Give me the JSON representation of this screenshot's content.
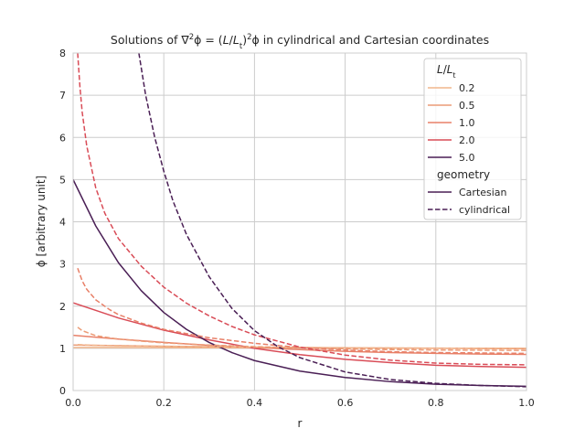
{
  "chart_data": {
    "type": "line",
    "title_parts": {
      "a": "Solutions of ",
      "b": "∇",
      "c": "2",
      "d": "ϕ = (",
      "e": "L",
      "f": "/",
      "g": "L",
      "h": "t",
      "i": ")",
      "j": "2",
      "k": "ϕ in cylindrical and Cartesian coordinates"
    },
    "xlabel": "r",
    "ylabel": "ϕ [arbitrary unit]",
    "xlim": [
      0.0,
      1.0
    ],
    "ylim": [
      0,
      8
    ],
    "x_ticks": [
      "0.0",
      "0.2",
      "0.4",
      "0.6",
      "0.8",
      "1.0"
    ],
    "y_ticks": [
      "0",
      "1",
      "2",
      "3",
      "4",
      "5",
      "6",
      "7",
      "8"
    ],
    "grid": true,
    "legend": {
      "placement": "top-right",
      "hue_title": {
        "var": "L",
        "sep": "/",
        "var2": "L",
        "sub": "t"
      },
      "hue_entries": [
        {
          "label": "0.2",
          "color": "#f1b58b"
        },
        {
          "label": "0.5",
          "color": "#ec9c77"
        },
        {
          "label": "1.0",
          "color": "#e88068"
        },
        {
          "label": "2.0",
          "color": "#d94c57"
        },
        {
          "label": "5.0",
          "color": "#4a1f55"
        }
      ],
      "style_title": "geometry",
      "style_entries": [
        {
          "label": "Cartesian",
          "dash": "solid"
        },
        {
          "label": "cylindrical",
          "dash": "dashed"
        }
      ]
    },
    "series": [
      {
        "ratio": 0.2,
        "geometry": "Cartesian",
        "color": "#f1b58b",
        "dash": "solid",
        "x": [
          0,
          0.1,
          0.2,
          0.3,
          0.4,
          0.5,
          0.6,
          0.7,
          0.8,
          0.9,
          1.0
        ],
        "y": [
          1.02,
          1.018,
          1.016,
          1.014,
          1.012,
          1.01,
          1.008,
          1.006,
          1.004,
          1.002,
          1.0
        ]
      },
      {
        "ratio": 0.5,
        "geometry": "Cartesian",
        "color": "#ec9c77",
        "dash": "solid",
        "x": [
          0,
          0.1,
          0.2,
          0.3,
          0.4,
          0.5,
          0.6,
          0.7,
          0.8,
          0.9,
          1.0
        ],
        "y": [
          1.08,
          1.065,
          1.05,
          1.038,
          1.028,
          1.018,
          1.01,
          1.005,
          1.0,
          0.995,
          0.99
        ]
      },
      {
        "ratio": 1.0,
        "geometry": "Cartesian",
        "color": "#e88068",
        "dash": "solid",
        "x": [
          0,
          0.1,
          0.2,
          0.3,
          0.4,
          0.5,
          0.6,
          0.7,
          0.8,
          0.9,
          1.0
        ],
        "y": [
          1.31,
          1.22,
          1.14,
          1.07,
          1.02,
          0.97,
          0.93,
          0.9,
          0.88,
          0.865,
          0.855
        ]
      },
      {
        "ratio": 2.0,
        "geometry": "Cartesian",
        "color": "#d94c57",
        "dash": "solid",
        "x": [
          0,
          0.1,
          0.2,
          0.3,
          0.4,
          0.5,
          0.6,
          0.7,
          0.8,
          0.9,
          1.0
        ],
        "y": [
          2.08,
          1.72,
          1.43,
          1.2,
          1.0,
          0.85,
          0.74,
          0.66,
          0.6,
          0.57,
          0.55
        ]
      },
      {
        "ratio": 5.0,
        "geometry": "Cartesian",
        "color": "#4a1f55",
        "dash": "solid",
        "x": [
          0,
          0.05,
          0.1,
          0.15,
          0.2,
          0.25,
          0.3,
          0.35,
          0.4,
          0.5,
          0.6,
          0.7,
          0.8,
          0.9,
          1.0
        ],
        "y": [
          5.0,
          3.9,
          3.03,
          2.37,
          1.85,
          1.45,
          1.14,
          0.9,
          0.71,
          0.46,
          0.31,
          0.21,
          0.15,
          0.12,
          0.1
        ]
      },
      {
        "ratio": 0.2,
        "geometry": "cylindrical",
        "color": "#f1b58b",
        "dash": "dashed",
        "x": [
          0.01,
          0.05,
          0.1,
          0.2,
          0.3,
          0.4,
          0.5,
          0.6,
          0.7,
          0.8,
          0.9,
          1.0
        ],
        "y": [
          1.09,
          1.07,
          1.06,
          1.05,
          1.04,
          1.03,
          1.02,
          1.015,
          1.01,
          1.005,
          1.0,
          1.0
        ]
      },
      {
        "ratio": 0.5,
        "geometry": "cylindrical",
        "color": "#ec9c77",
        "dash": "dashed",
        "x": [
          0.01,
          0.02,
          0.05,
          0.1,
          0.15,
          0.2,
          0.3,
          0.4,
          0.5,
          0.6,
          0.7,
          0.8,
          0.9,
          1.0
        ],
        "y": [
          1.5,
          1.42,
          1.3,
          1.22,
          1.17,
          1.13,
          1.08,
          1.04,
          1.01,
          0.99,
          0.97,
          0.96,
          0.955,
          0.95
        ]
      },
      {
        "ratio": 1.0,
        "geometry": "cylindrical",
        "color": "#e88068",
        "dash": "dashed",
        "x": [
          0.01,
          0.02,
          0.03,
          0.05,
          0.08,
          0.1,
          0.15,
          0.2,
          0.3,
          0.4,
          0.5,
          0.6,
          0.7,
          0.8,
          0.9,
          1.0
        ],
        "y": [
          2.9,
          2.6,
          2.4,
          2.15,
          1.92,
          1.8,
          1.6,
          1.45,
          1.25,
          1.12,
          1.02,
          0.96,
          0.92,
          0.9,
          0.89,
          0.88
        ]
      },
      {
        "ratio": 2.0,
        "geometry": "cylindrical",
        "color": "#d94c57",
        "dash": "dashed",
        "x": [
          0.01,
          0.015,
          0.02,
          0.03,
          0.05,
          0.07,
          0.1,
          0.15,
          0.2,
          0.25,
          0.3,
          0.35,
          0.4,
          0.5,
          0.6,
          0.7,
          0.8,
          0.9,
          1.0
        ],
        "y": [
          8.0,
          7.2,
          6.6,
          5.8,
          4.8,
          4.2,
          3.6,
          2.95,
          2.45,
          2.07,
          1.77,
          1.52,
          1.32,
          1.03,
          0.84,
          0.72,
          0.65,
          0.62,
          0.61
        ]
      },
      {
        "ratio": 5.0,
        "geometry": "cylindrical",
        "color": "#4a1f55",
        "dash": "dashed",
        "x": [
          0.145,
          0.16,
          0.18,
          0.2,
          0.22,
          0.25,
          0.3,
          0.35,
          0.4,
          0.45,
          0.5,
          0.6,
          0.7,
          0.8,
          0.9,
          1.0
        ],
        "y": [
          8.0,
          7.0,
          6.0,
          5.2,
          4.5,
          3.7,
          2.7,
          1.95,
          1.42,
          1.05,
          0.78,
          0.44,
          0.26,
          0.17,
          0.12,
          0.09
        ]
      }
    ]
  }
}
